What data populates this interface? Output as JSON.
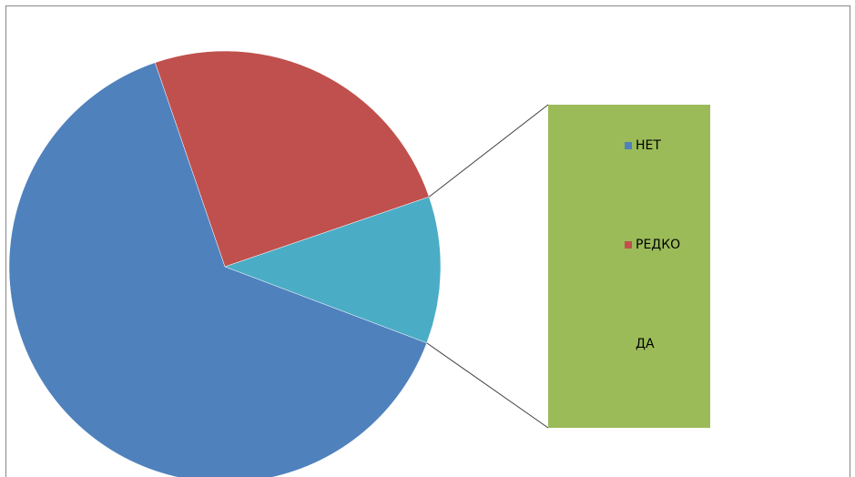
{
  "chart_data": {
    "type": "pie",
    "subtype": "bar-of-pie",
    "categories": [
      "НЕТ",
      "РЕДКО",
      "ДА"
    ],
    "values": [
      64,
      25,
      11
    ],
    "colors": [
      "#4f81bd",
      "#c0504d",
      "#9bbb59"
    ],
    "split_color": "#4bacc6",
    "legend": "right"
  }
}
